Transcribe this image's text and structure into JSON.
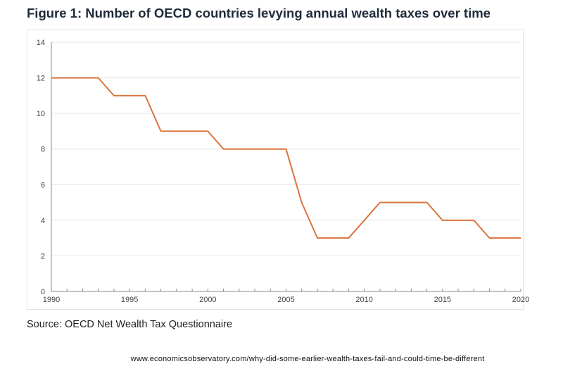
{
  "title": "Figure 1: Number of OECD countries levying annual wealth taxes over time",
  "source": "Source: OECD Net Wealth Tax Questionnaire",
  "url": "www.economicsobservatory.com/why-did-some-earlier-wealth-taxes-fail-and-could-time-be-different",
  "chart_data": {
    "type": "line",
    "title": "Figure 1: Number of OECD countries levying annual wealth taxes over time",
    "xlabel": "",
    "ylabel": "",
    "xlim": [
      1990,
      2020
    ],
    "ylim": [
      0,
      14
    ],
    "x_ticks": [
      "1990",
      "1995",
      "2000",
      "2005",
      "2010",
      "2015",
      "2020"
    ],
    "y_ticks": [
      "0",
      "2",
      "4",
      "6",
      "8",
      "10",
      "12",
      "14"
    ],
    "grid": "horizontal",
    "line_color": "#d9743c",
    "x": [
      1990,
      1991,
      1992,
      1993,
      1994,
      1995,
      1996,
      1997,
      1998,
      1999,
      2000,
      2001,
      2002,
      2003,
      2004,
      2005,
      2006,
      2007,
      2008,
      2009,
      2010,
      2011,
      2012,
      2013,
      2014,
      2015,
      2016,
      2017,
      2018,
      2019,
      2020
    ],
    "y": [
      12,
      12,
      12,
      12,
      11,
      11,
      11,
      9,
      9,
      9,
      9,
      8,
      8,
      8,
      8,
      8,
      5,
      3,
      3,
      3,
      4,
      5,
      5,
      5,
      5,
      4,
      4,
      4,
      3,
      3,
      3
    ]
  }
}
